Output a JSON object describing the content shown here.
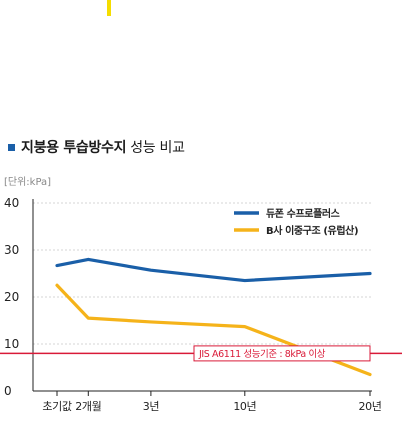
{
  "page": {
    "title_bold": "지붕용 투습방수지",
    "title_rest": "성능 비교",
    "unit_label": "[단위:kPa]"
  },
  "colors": {
    "accent": "#f5dd00",
    "series_blue": "#1a5fa8",
    "series_yellow": "#f5b31a",
    "reference_line": "#d91a38",
    "grid": "#aaaaaa"
  },
  "chart_data": {
    "type": "line",
    "title": "지붕용 투습방수지 성능 비교",
    "ylabel": "[단위:kPa]",
    "xlabel": "",
    "categories": [
      "초기값",
      "2개월",
      "3년",
      "10년",
      "20년"
    ],
    "x_positions": [
      0,
      2,
      6,
      12,
      20
    ],
    "ylim": [
      0,
      40
    ],
    "yticks": [
      0,
      10,
      20,
      30,
      40
    ],
    "grid": "horizontal-dashed",
    "legend_position": "top-right",
    "series": [
      {
        "name": "듀폰 수프로플러스",
        "color": "#1a5fa8",
        "values": [
          26.7,
          28.0,
          25.7,
          23.5,
          25.0
        ]
      },
      {
        "name": "B사 이중구조 (유럽산)",
        "color": "#f5b31a",
        "values": [
          22.5,
          15.5,
          14.7,
          13.7,
          3.5
        ]
      }
    ],
    "reference": {
      "value": 8,
      "label": "JIS A6111 성능기준 : 8kPa 이상",
      "color": "#d91a38"
    }
  }
}
